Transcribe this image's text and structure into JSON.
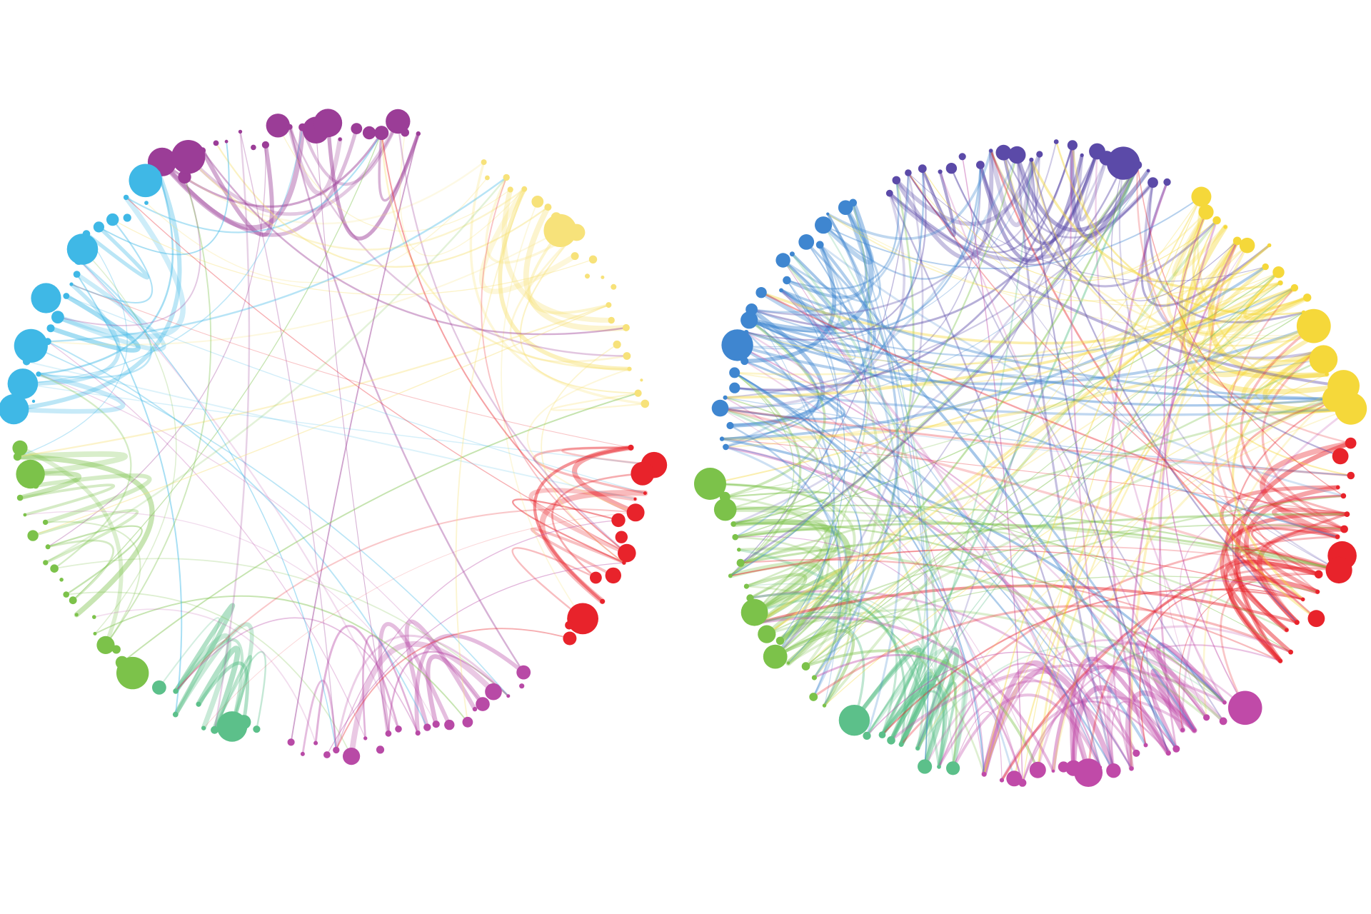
{
  "diagrams": [
    {
      "id": "network-left",
      "groups": [
        {
          "color": "#9b3d97"
        },
        {
          "color": "#f7e27a"
        },
        {
          "color": "#e8232b"
        },
        {
          "color": "#b84aa6"
        },
        {
          "color": "#5cc08a"
        },
        {
          "color": "#7cc24a"
        },
        {
          "color": "#3fb8e6"
        }
      ]
    },
    {
      "id": "network-right",
      "groups": [
        {
          "color": "#5b4aa8"
        },
        {
          "color": "#f5d83a"
        },
        {
          "color": "#e8232b"
        },
        {
          "color": "#c04aa8"
        },
        {
          "color": "#5cc08a"
        },
        {
          "color": "#7cc24a"
        },
        {
          "color": "#3f86d0"
        }
      ]
    }
  ]
}
